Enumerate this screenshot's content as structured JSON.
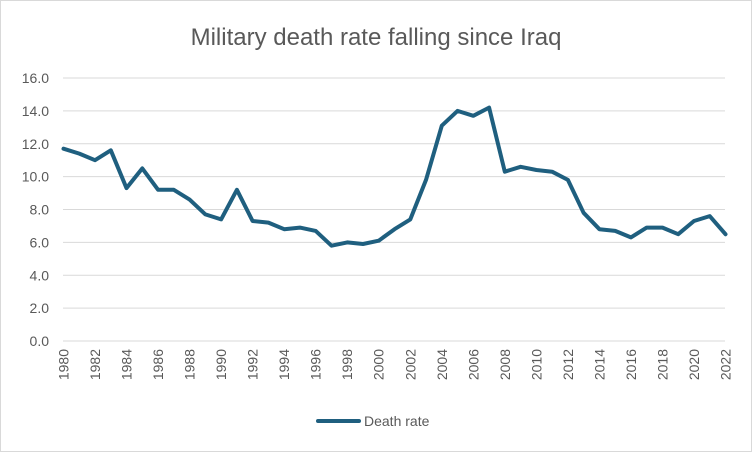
{
  "chart_data": {
    "type": "line",
    "title": "Military death rate falling since Iraq",
    "xlabel": "",
    "ylabel": "",
    "ylim": [
      0,
      16
    ],
    "y_ticks": [
      "0.0",
      "2.0",
      "4.0",
      "6.0",
      "8.0",
      "10.0",
      "12.0",
      "14.0",
      "16.0"
    ],
    "x_tick_labels": [
      "1980",
      "1982",
      "1984",
      "1986",
      "1988",
      "1990",
      "1992",
      "1994",
      "1996",
      "1998",
      "2000",
      "2002",
      "2004",
      "2006",
      "2008",
      "2010",
      "2012",
      "2014",
      "2016",
      "2018",
      "2020",
      "2022"
    ],
    "grid": "horizontal",
    "legend_position": "bottom",
    "x": [
      1980,
      1981,
      1982,
      1983,
      1984,
      1985,
      1986,
      1987,
      1988,
      1989,
      1990,
      1991,
      1992,
      1993,
      1994,
      1995,
      1996,
      1997,
      1998,
      1999,
      2000,
      2001,
      2002,
      2003,
      2004,
      2005,
      2006,
      2007,
      2008,
      2009,
      2010,
      2011,
      2012,
      2013,
      2014,
      2015,
      2016,
      2017,
      2018,
      2019,
      2020,
      2021,
      2022
    ],
    "series": [
      {
        "name": "Death rate",
        "color": "#1f5f7f",
        "values": [
          11.7,
          11.4,
          11.0,
          11.6,
          9.3,
          10.5,
          9.2,
          9.2,
          8.6,
          7.7,
          7.4,
          9.2,
          7.3,
          7.2,
          6.8,
          6.9,
          6.7,
          5.8,
          6.0,
          5.9,
          6.1,
          6.8,
          7.4,
          9.8,
          13.1,
          14.0,
          13.7,
          14.2,
          10.3,
          10.6,
          10.4,
          10.3,
          9.8,
          7.8,
          6.8,
          6.7,
          6.3,
          6.9,
          6.9,
          6.5,
          7.3,
          7.6,
          6.5
        ]
      }
    ]
  }
}
